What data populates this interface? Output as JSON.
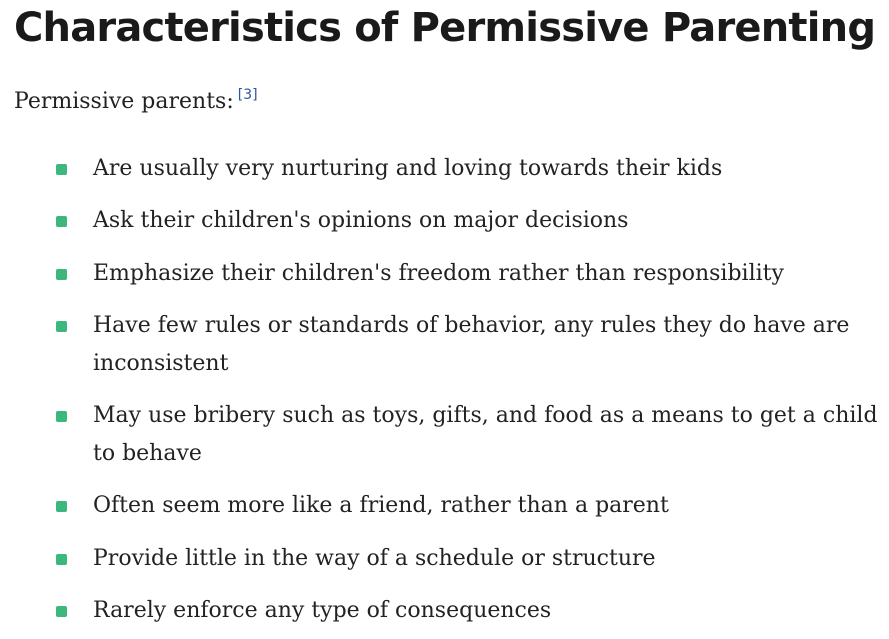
{
  "heading": {
    "title": "Characteristics of Permissive Parenting"
  },
  "intro": {
    "text": "Permissive parents:",
    "citation": "[3]"
  },
  "accent_color": "#3cb87d",
  "link_color": "#2a56a6",
  "bullet_icon": "rounded-square-bullet",
  "items": [
    {
      "text": "Are usually very nurturing and loving towards their kids"
    },
    {
      "text": "Ask their children's opinions on major decisions"
    },
    {
      "text": "Emphasize their children's freedom rather than responsibility"
    },
    {
      "text": "Have few rules or standards of behavior, any rules they do have are inconsistent"
    },
    {
      "text": "May use bribery such as toys, gifts, and food as a means to get a child to behave"
    },
    {
      "text": "Often seem more like a friend, rather than a parent"
    },
    {
      "text": "Provide little in the way of a schedule or structure"
    },
    {
      "text": "Rarely enforce any type of consequences"
    }
  ]
}
